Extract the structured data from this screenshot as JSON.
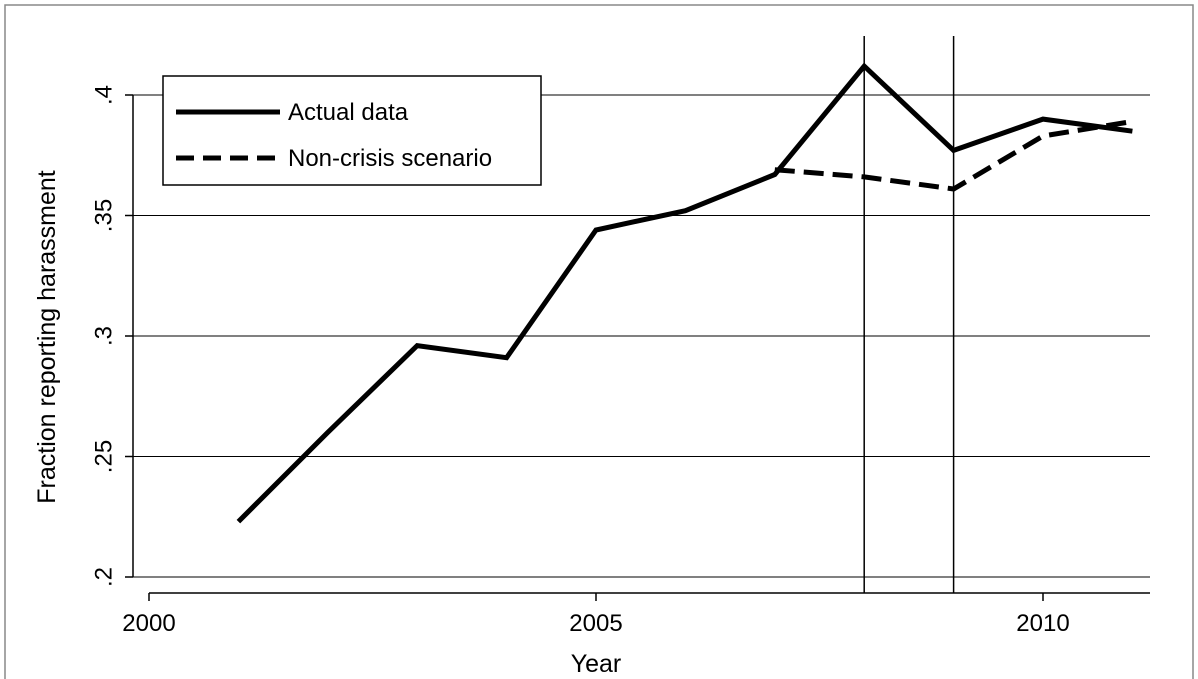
{
  "chart_data": {
    "type": "line",
    "title": "",
    "xlabel": "Year",
    "ylabel": "Fraction reporting harassment",
    "xlim": [
      2000,
      2011.2
    ],
    "ylim": [
      0.2,
      0.4
    ],
    "x_ticks": [
      2000,
      2005,
      2010
    ],
    "x_tick_labels": [
      "2000",
      "2005",
      "2010"
    ],
    "y_ticks": [
      0.2,
      0.25,
      0.3,
      0.35,
      0.4
    ],
    "y_tick_labels": [
      ".2",
      ".25",
      ".3",
      ".35",
      ".4"
    ],
    "grid": "horizontal",
    "reference_lines_x": [
      2008,
      2009
    ],
    "legend": {
      "position": "top-left",
      "entries": [
        "Actual data",
        "Non-crisis scenario"
      ]
    },
    "series": [
      {
        "name": "Actual data",
        "style": "solid",
        "color": "#000000",
        "x": [
          2001,
          2002,
          2003,
          2004,
          2005,
          2006,
          2007,
          2008,
          2009,
          2010,
          2011
        ],
        "y": [
          0.223,
          0.26,
          0.296,
          0.291,
          0.344,
          0.352,
          0.367,
          0.412,
          0.377,
          0.39,
          0.385
        ]
      },
      {
        "name": "Non-crisis scenario",
        "style": "dashed",
        "color": "#000000",
        "x": [
          2007,
          2008,
          2009,
          2010,
          2011
        ],
        "y": [
          0.369,
          0.366,
          0.361,
          0.383,
          0.389
        ]
      }
    ]
  }
}
